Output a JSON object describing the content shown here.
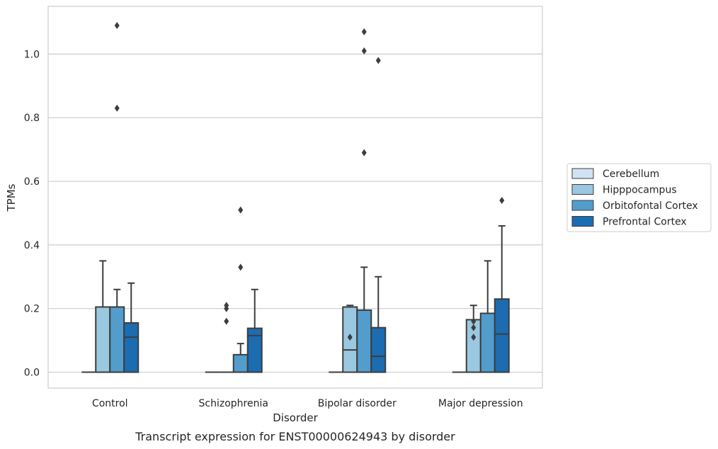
{
  "caption": "Transcript expression for ENST00000624943 by disorder",
  "colors": {
    "Cerebellum": "#d1e2f2",
    "Hipppocampus": "#9ac8e0",
    "Orbitofontal Cortex": "#529dcc",
    "Prefrontal Cortex": "#1c6cb1",
    "line": "#3d3d3d",
    "grid": "#cccccc"
  },
  "chart_data": {
    "type": "box",
    "title": "",
    "xlabel": "Disorder",
    "ylabel": "TPMs",
    "ylim": [
      -0.05,
      1.15
    ],
    "yticks": [
      0.0,
      0.2,
      0.4,
      0.6,
      0.8,
      1.0
    ],
    "ytick_labels": [
      "0.0",
      "0.2",
      "0.4",
      "0.6",
      "0.8",
      "1.0"
    ],
    "grid": "horizontal",
    "legend_position": "right",
    "categories": [
      "Control",
      "Schizophrenia",
      "Bipolar disorder",
      "Major depression"
    ],
    "series": [
      {
        "name": "Cerebellum",
        "boxes": [
          {
            "whislo": 0,
            "q1": 0,
            "med": 0,
            "q3": 0,
            "whishi": 0,
            "fliers": []
          },
          {
            "whislo": 0,
            "q1": 0,
            "med": 0,
            "q3": 0,
            "whishi": 0,
            "fliers": []
          },
          {
            "whislo": 0,
            "q1": 0,
            "med": 0,
            "q3": 0,
            "whishi": 0,
            "fliers": []
          },
          {
            "whislo": 0,
            "q1": 0,
            "med": 0,
            "q3": 0,
            "whishi": 0,
            "fliers": []
          }
        ]
      },
      {
        "name": "Hipppocampus",
        "boxes": [
          {
            "whislo": 0,
            "q1": 0,
            "med": 0,
            "q3": 0.205,
            "whishi": 0.35,
            "fliers": []
          },
          {
            "whislo": 0,
            "q1": 0,
            "med": 0,
            "q3": 0,
            "whishi": 0,
            "fliers": [
              0.16,
              0.2,
              0.21
            ]
          },
          {
            "whislo": 0,
            "q1": 0,
            "med": 0.07,
            "q3": 0.205,
            "whishi": 0.21,
            "fliers": [
              0.11
            ]
          },
          {
            "whislo": 0,
            "q1": 0,
            "med": 0,
            "q3": 0.165,
            "whishi": 0.21,
            "fliers": [
              0.11,
              0.14,
              0.16
            ]
          }
        ]
      },
      {
        "name": "Orbitofontal Cortex",
        "boxes": [
          {
            "whislo": 0,
            "q1": 0,
            "med": 0,
            "q3": 0.205,
            "whishi": 0.26,
            "fliers": [
              0.83,
              1.09
            ]
          },
          {
            "whislo": 0,
            "q1": 0,
            "med": 0,
            "q3": 0.055,
            "whishi": 0.09,
            "fliers": [
              0.33,
              0.51
            ]
          },
          {
            "whislo": 0,
            "q1": 0,
            "med": 0,
            "q3": 0.195,
            "whishi": 0.33,
            "fliers": [
              0.69,
              1.01,
              1.07
            ]
          },
          {
            "whislo": 0,
            "q1": 0,
            "med": 0,
            "q3": 0.185,
            "whishi": 0.35,
            "fliers": []
          }
        ]
      },
      {
        "name": "Prefrontal Cortex",
        "boxes": [
          {
            "whislo": 0,
            "q1": 0,
            "med": 0.11,
            "q3": 0.155,
            "whishi": 0.28,
            "fliers": []
          },
          {
            "whislo": 0,
            "q1": 0,
            "med": 0.115,
            "q3": 0.138,
            "whishi": 0.26,
            "fliers": []
          },
          {
            "whislo": 0,
            "q1": 0,
            "med": 0.05,
            "q3": 0.14,
            "whishi": 0.3,
            "fliers": [
              0.98
            ]
          },
          {
            "whislo": 0,
            "q1": 0,
            "med": 0.12,
            "q3": 0.23,
            "whishi": 0.46,
            "fliers": [
              0.54
            ]
          }
        ]
      }
    ]
  }
}
